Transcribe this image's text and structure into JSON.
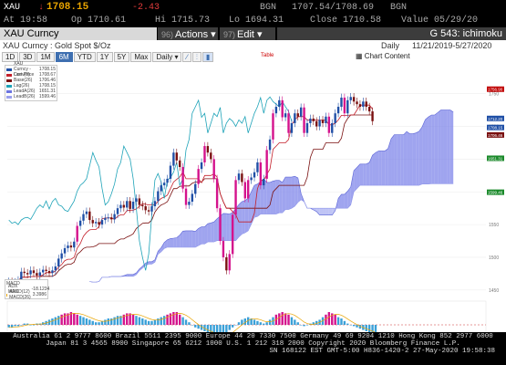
{
  "quote": {
    "ticker": "XAU",
    "last": "1708.15",
    "change": "-2.43",
    "bgn": "BGN",
    "bid_ask": "1707.54/1708.69",
    "bid_ask_src": "BGN",
    "time": "At 19:58",
    "open": "Op 1710.61",
    "high": "Hi 1715.73",
    "low": "Lo 1694.31",
    "close": "Close 1710.58",
    "value": "Value 05/29/20"
  },
  "command_bar": {
    "security": "XAU Curncy",
    "actions_num": "96)",
    "actions_label": "Actions",
    "edit_num": "97)",
    "edit_label": "Edit",
    "function_label": "G 543: ichimoku"
  },
  "chart_header": {
    "security_name": "XAU Curncy : Gold Spot  $/Oz",
    "period": "Daily",
    "date_range": "11/21/2019-5/27/2020"
  },
  "toolbar": {
    "ranges": [
      "1D",
      "3D",
      "1M",
      "6M",
      "YTD",
      "1Y",
      "5Y",
      "Max"
    ],
    "active_range": "6M",
    "frequency": "Daily",
    "table_label": "Table",
    "chart_content_label": "Chart Content"
  },
  "legend": {
    "items": [
      {
        "label": "XAU Curncy - Last Price",
        "value": "1708.15",
        "color": "#1f4fa6"
      },
      {
        "label": "Conv(9)",
        "value": "1708.67",
        "color": "#c4202b"
      },
      {
        "label": "Base(26)",
        "value": "1706.46",
        "color": "#7a1010"
      },
      {
        "label": "Lag(26)",
        "value": "1708.15",
        "color": "#1ea3b8"
      },
      {
        "label": "LeadA(26)",
        "value": "1651.31",
        "color": "#6b74e0"
      },
      {
        "label": "LeadB(26)",
        "value": "1599.46",
        "color": "#9aa0ee"
      }
    ]
  },
  "macd_legend": {
    "title": "MACD",
    "items": [
      {
        "label": "ADX MACD(12)",
        "value": "-18.1234",
        "color": "#1ea3b8"
      },
      {
        "label": "ADX MACD(26)",
        "value": "3.3986",
        "color": "#e8a400"
      }
    ]
  },
  "footer": {
    "line1": "Australia 61 2 9777 8600 Brazil 5511 2395 9000 Europe 44 20 7330 7500 Germany 49 69 9204 1210 Hong Kong 852 2977 6000",
    "line2": "Japan 81 3 4565 8900        Singapore 65 6212 1000        U.S. 1 212 318 2000           Copyright 2020 Bloomberg Finance L.P.",
    "line3": "SN 168122 EST  GMT-5:00 H836-1420-2 27-May-2020 19:58:38"
  },
  "chart_data": {
    "type": "line",
    "title": "",
    "price_tags": [
      "1756.90",
      "1712.20",
      "1708.15",
      "1706.46",
      "1651.31",
      "1599.46"
    ],
    "x_labels": [
      "Nov 25",
      "Dec 16",
      "Dec 31",
      "Jan 13",
      "Jan 27",
      "Feb 10",
      "Feb 24",
      "Mar 09",
      "Mar 23",
      "Apr 06",
      "Apr 20",
      "May 04",
      "May 18",
      "Jun 01",
      "Jun 15"
    ],
    "x_sub_labels": [
      "2019",
      "2020"
    ],
    "y_ticks": [
      1750,
      1700,
      1650,
      1600,
      1550,
      1500,
      1450
    ],
    "ylim": [
      1440,
      1790
    ],
    "close": [
      1463,
      1461,
      1462,
      1465,
      1478,
      1476,
      1474,
      1480,
      1476,
      1472,
      1477,
      1481,
      1479,
      1476,
      1480,
      1486,
      1498,
      1506,
      1514,
      1518,
      1515,
      1524,
      1548,
      1556,
      1566,
      1570,
      1557,
      1552,
      1554,
      1550,
      1557,
      1560,
      1561,
      1558,
      1566,
      1575,
      1580,
      1576,
      1586,
      1574,
      1585,
      1590,
      1580,
      1578,
      1572,
      1570,
      1578,
      1586,
      1601,
      1610,
      1614,
      1620,
      1640,
      1660,
      1648,
      1638,
      1605,
      1580,
      1585,
      1597,
      1612,
      1635,
      1645,
      1670,
      1660,
      1650,
      1620,
      1575,
      1525,
      1500,
      1480,
      1505,
      1565,
      1618,
      1628,
      1615,
      1590,
      1618,
      1622,
      1630,
      1645,
      1610,
      1620,
      1664,
      1680,
      1720,
      1730,
      1740,
      1714,
      1720,
      1690,
      1705,
      1720,
      1715,
      1729,
      1690,
      1705,
      1712,
      1708,
      1700,
      1710,
      1705,
      1715,
      1690,
      1705,
      1720,
      1730,
      1744,
      1720,
      1740,
      1745,
      1738,
      1734,
      1730,
      1738,
      1730,
      1723,
      1708
    ],
    "macd_hist": [
      -2,
      -2,
      -1,
      -1,
      0,
      1,
      1,
      0,
      0,
      1,
      1,
      2,
      3,
      4,
      5,
      6,
      7,
      8,
      9,
      9,
      10,
      9,
      8,
      7,
      6,
      5,
      4,
      3,
      2,
      2,
      3,
      4,
      5,
      5,
      6,
      7,
      7,
      8,
      9,
      9,
      8,
      7,
      6,
      5,
      4,
      3,
      3,
      4,
      5,
      6,
      7,
      8,
      9,
      10,
      10,
      8,
      6,
      4,
      2,
      0,
      -2,
      -3,
      -4,
      -5,
      -6,
      -7,
      -8,
      -9,
      -10,
      -8,
      -6,
      -4,
      -2,
      0,
      2,
      4,
      5,
      6,
      5,
      4,
      3,
      2,
      1,
      2,
      4,
      6,
      8,
      9,
      10,
      9,
      8,
      6,
      4,
      2,
      0,
      -1,
      0,
      1,
      2,
      3,
      4,
      6,
      8,
      10,
      9,
      8,
      6,
      5,
      3,
      1,
      0,
      -1,
      -2,
      -3,
      -4,
      -5,
      -6,
      -7,
      -8
    ]
  }
}
